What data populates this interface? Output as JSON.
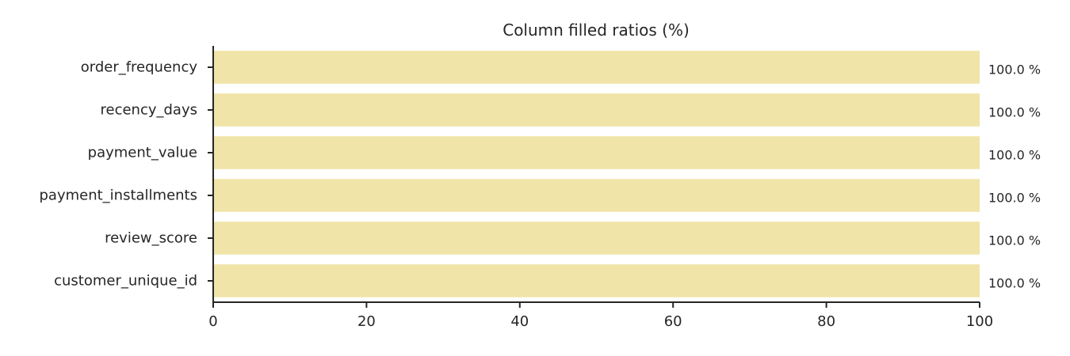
{
  "chart_data": {
    "type": "bar",
    "orientation": "horizontal",
    "title": "Column filled ratios (%)",
    "xlabel": "",
    "ylabel": "",
    "categories": [
      "order_frequency",
      "recency_days",
      "payment_value",
      "payment_installments",
      "review_score",
      "customer_unique_id"
    ],
    "values": [
      100.0,
      100.0,
      100.0,
      100.0,
      100.0,
      100.0
    ],
    "value_labels": [
      "100.0 %",
      "100.0 %",
      "100.0 %",
      "100.0 %",
      "100.0 %",
      "100.0 %"
    ],
    "xlim": [
      0,
      100
    ],
    "xticks": [
      "0",
      "20",
      "40",
      "60",
      "80",
      "100"
    ],
    "grid": false,
    "bar_color": "#f0e4a8"
  }
}
